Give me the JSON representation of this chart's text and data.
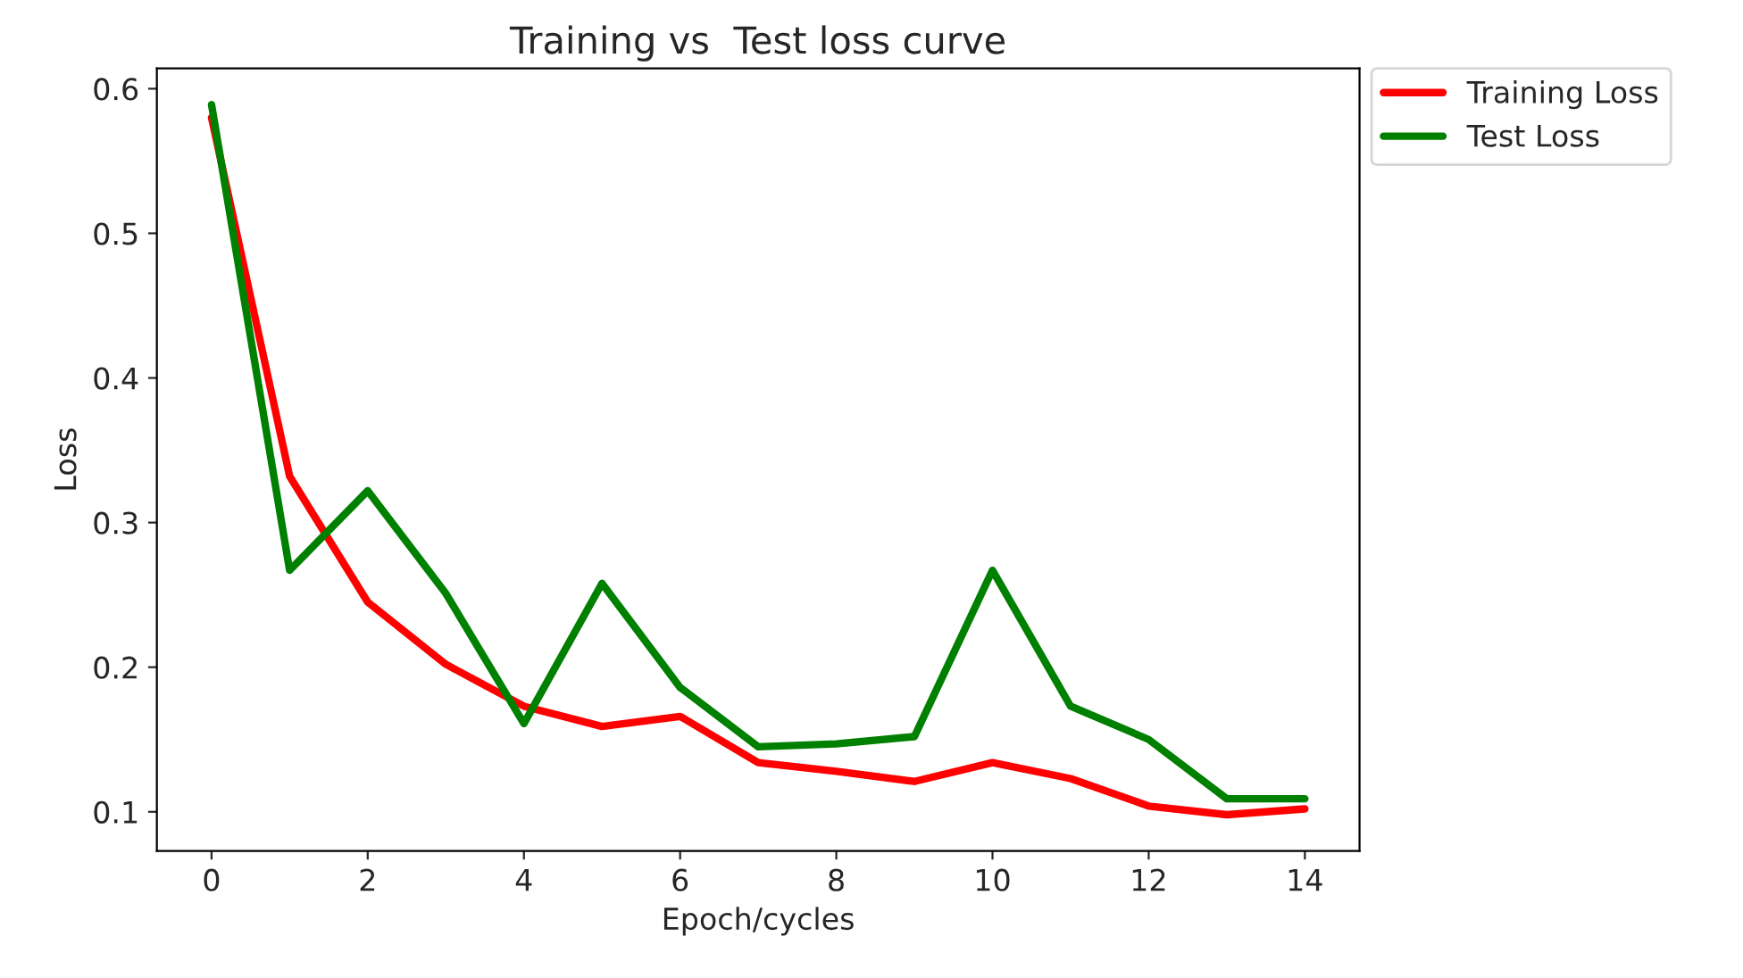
{
  "chart_data": {
    "type": "line",
    "title": "Training vs  Test loss curve",
    "xlabel": "Epoch/cycles",
    "ylabel": "Loss",
    "x": [
      0,
      1,
      2,
      3,
      4,
      5,
      6,
      7,
      8,
      9,
      10,
      11,
      12,
      13,
      14
    ],
    "series": [
      {
        "name": "Training Loss",
        "color": "#ff0000",
        "values": [
          0.58,
          0.332,
          0.245,
          0.202,
          0.173,
          0.159,
          0.166,
          0.134,
          0.128,
          0.121,
          0.134,
          0.123,
          0.104,
          0.098,
          0.102
        ]
      },
      {
        "name": "Test Loss",
        "color": "#008000",
        "values": [
          0.589,
          0.267,
          0.322,
          0.251,
          0.161,
          0.258,
          0.186,
          0.145,
          0.147,
          0.152,
          0.267,
          0.173,
          0.15,
          0.109,
          0.109
        ]
      }
    ],
    "xlim": [
      -0.7,
      14.7
    ],
    "ylim": [
      0.073,
      0.614
    ],
    "xticks": [
      0,
      2,
      4,
      6,
      8,
      10,
      12,
      14
    ],
    "yticks": [
      0.1,
      0.2,
      0.3,
      0.4,
      0.5,
      0.6
    ],
    "grid": false,
    "legend": "top right",
    "marker": "none",
    "line_style": "solid"
  }
}
